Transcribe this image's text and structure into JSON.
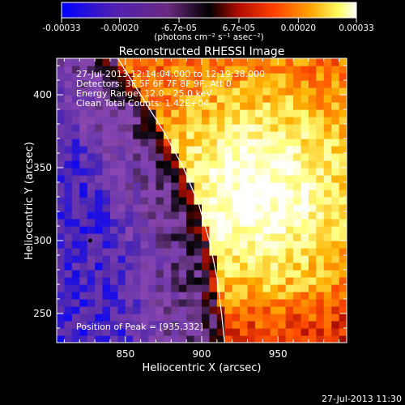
{
  "colorbar": {
    "tick_labels": [
      "-0.00033",
      "-0.00020",
      "-6.7e-05",
      "6.7e-05",
      "0.00020",
      "0.00033"
    ],
    "tick_values": [
      -0.00033,
      -0.0002,
      -6.7e-05,
      6.7e-05,
      0.0002,
      0.00033
    ],
    "range": [
      -0.00033,
      0.00033
    ],
    "unit_label": "(photons cm⁻² s⁻¹ asec⁻²)"
  },
  "chart_data": {
    "type": "heatmap",
    "title": "Reconstructed RHESSI Image",
    "xlabel": "Heliocentric X (arcsec)",
    "ylabel": "Heliocentric Y (arcsec)",
    "xlim": [
      805,
      995
    ],
    "ylim": [
      230,
      425
    ],
    "x_ticks": [
      850,
      900,
      950
    ],
    "y_ticks": [
      250,
      300,
      350,
      400
    ],
    "x_tick_labels": [
      "850",
      "900",
      "950"
    ],
    "y_tick_labels": [
      "250",
      "300",
      "350",
      "400"
    ],
    "colormap": [
      "#0000ff",
      "#5a2ea8",
      "#8a47b0",
      "#000000",
      "#b01000",
      "#ff4a00",
      "#ffb000",
      "#ffff80",
      "#ffffff"
    ],
    "limb_curve": [
      [
        845,
        425
      ],
      [
        860,
        400
      ],
      [
        875,
        375
      ],
      [
        888,
        350
      ],
      [
        898,
        325
      ],
      [
        905,
        300
      ],
      [
        910,
        275
      ],
      [
        913,
        250
      ],
      [
        915,
        230
      ]
    ],
    "peak": [
      935,
      332
    ],
    "marker": [
      827,
      300
    ],
    "annotations": {
      "time_range": "27-Jul-2013 12:14:04.000 to 12:19:38.000",
      "detectors": "Detectors: 3F 5F 6F 7F 8F 9F, Att 0",
      "energy": "Energy Range: 12.0 - 25.0 keV",
      "method": "Clean    Total Counts: 1.42E+04",
      "peak_text": "Position of Peak = [935,332]"
    }
  },
  "footer": {
    "timestamp": "27-Jul-2013 11:30"
  }
}
